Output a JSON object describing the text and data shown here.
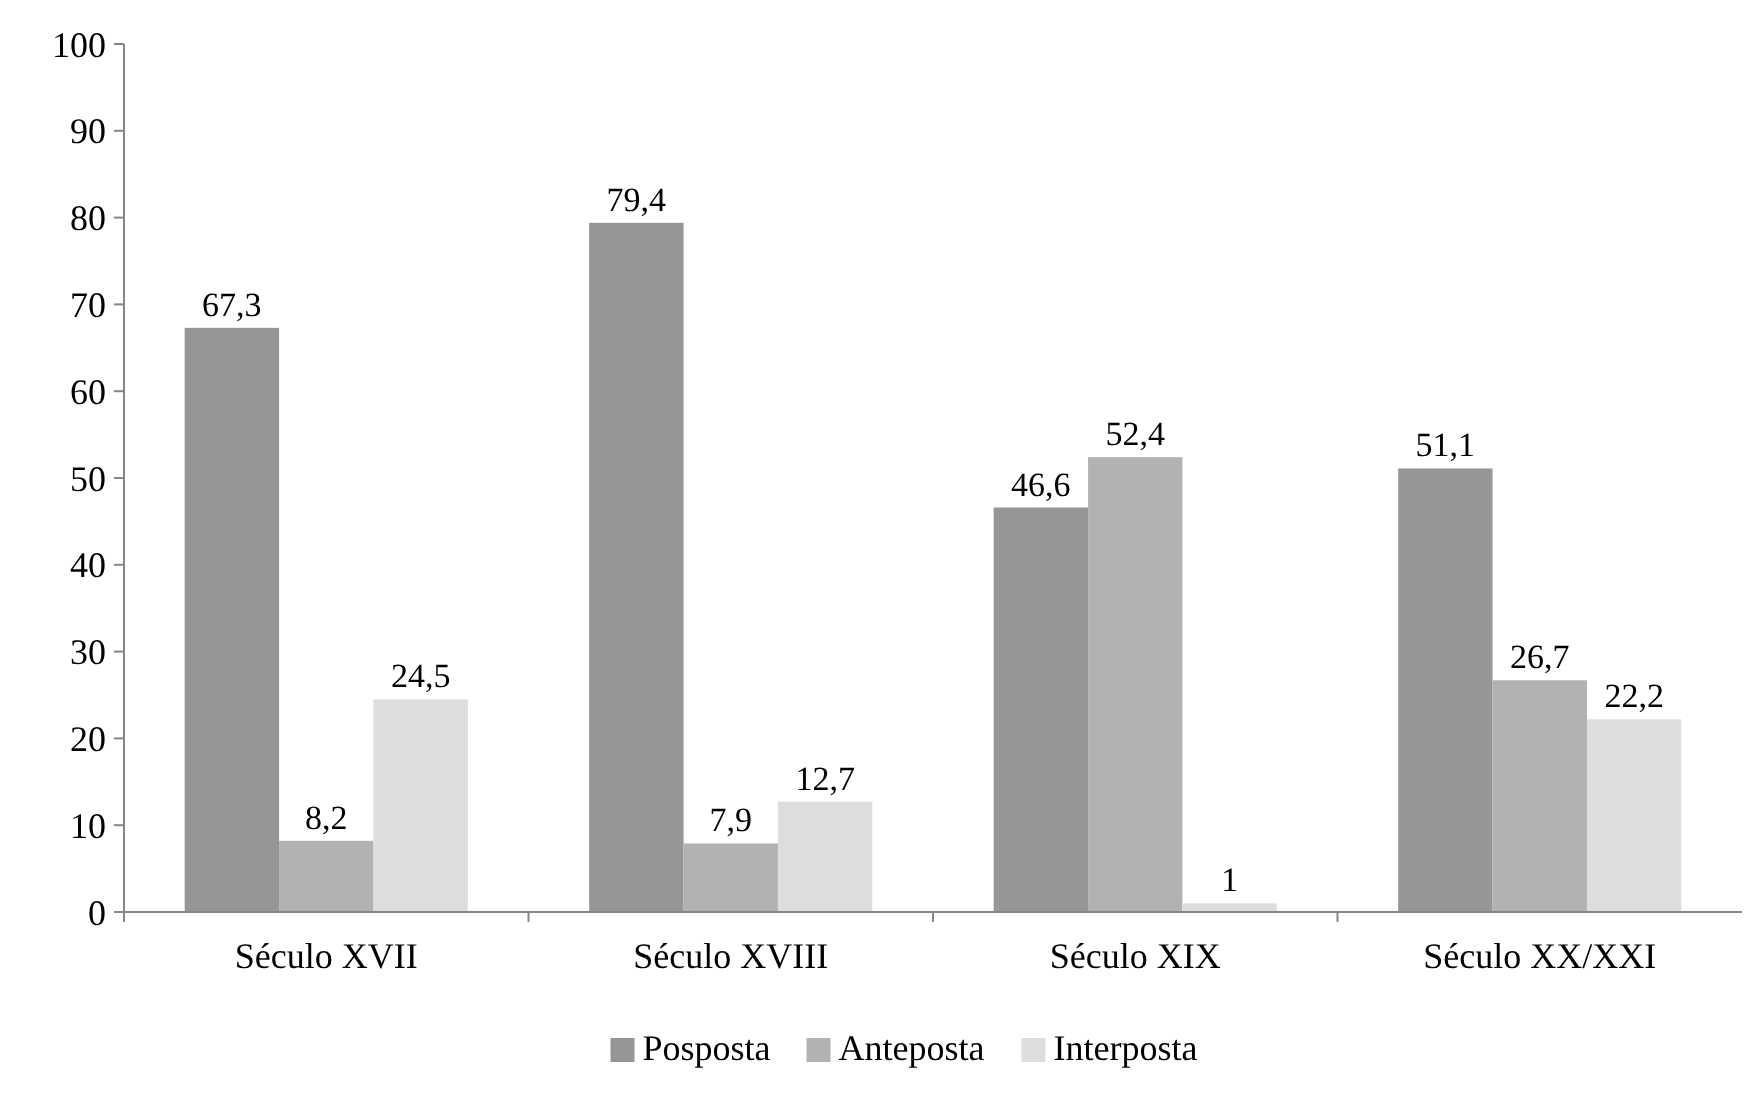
{
  "chart_data": {
    "type": "bar",
    "categories": [
      "Século XVII",
      "Século XVIII",
      "Século XIX",
      "Século XX/XXI"
    ],
    "series": [
      {
        "name": "Posposta",
        "color": "#969696",
        "values": [
          67.3,
          79.4,
          46.6,
          51.1
        ],
        "value_labels": [
          "67,3",
          "79,4",
          "46,6",
          "51,1"
        ]
      },
      {
        "name": "Anteposta",
        "color": "#b2b2b2",
        "values": [
          8.2,
          7.9,
          52.4,
          26.7
        ],
        "value_labels": [
          "8,2",
          "7,9",
          "52,4",
          "26,7"
        ]
      },
      {
        "name": "Interposta",
        "color": "#dddddd",
        "values": [
          24.5,
          12.7,
          1,
          22.2
        ],
        "value_labels": [
          "24,5",
          "12,7",
          "1",
          "22,2"
        ]
      }
    ],
    "ylim": [
      0,
      100
    ],
    "yticks": [
      0,
      10,
      20,
      30,
      40,
      50,
      60,
      70,
      80,
      90,
      100
    ],
    "legend": "bottom",
    "grid": false
  }
}
